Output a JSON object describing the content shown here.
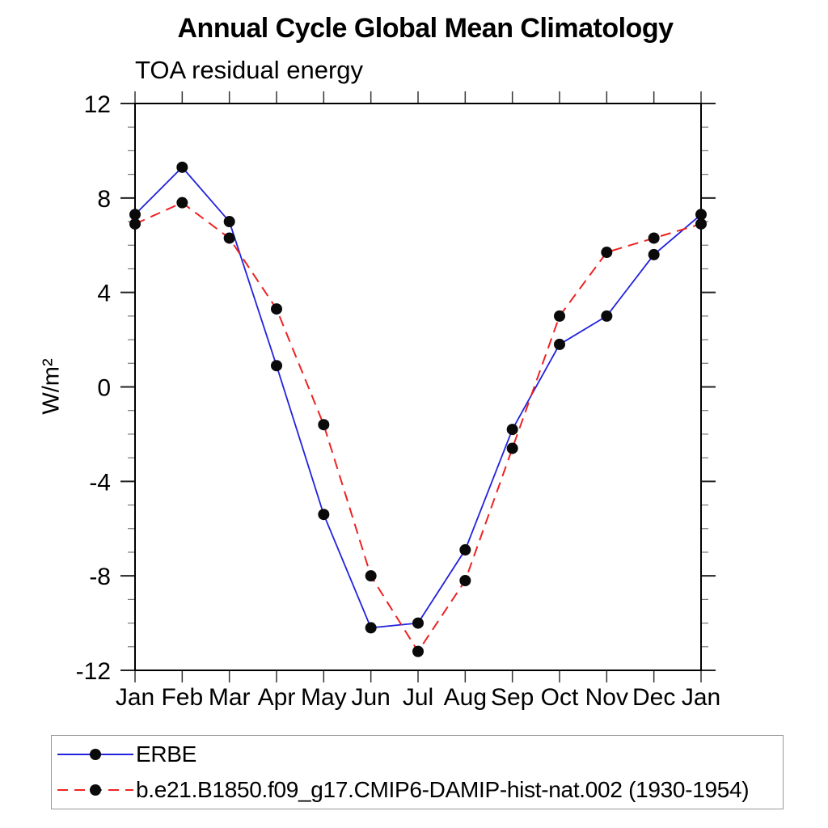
{
  "chart_data": {
    "type": "line",
    "title": "Annual Cycle Global Mean Climatology",
    "subtitle": "TOA residual energy",
    "ylabel": "W/m²",
    "ylim": [
      -12,
      12
    ],
    "y_major_ticks": [
      -12,
      -8,
      -4,
      0,
      4,
      8,
      12
    ],
    "y_minor_step": 1,
    "grid": false,
    "legend_position": "bottom-left-box",
    "categories": [
      "Jan",
      "Feb",
      "Mar",
      "Apr",
      "May",
      "Jun",
      "Jul",
      "Aug",
      "Sep",
      "Oct",
      "Nov",
      "Dec",
      "Jan"
    ],
    "series": [
      {
        "name": "ERBE",
        "color": "#2222dd",
        "line_style": "solid",
        "marker": "circle",
        "marker_color": "#0a0a0a",
        "values": [
          7.3,
          9.3,
          7.0,
          0.9,
          -5.4,
          -10.2,
          -10.0,
          -6.9,
          -1.8,
          1.8,
          3.0,
          5.6,
          7.3
        ]
      },
      {
        "name": "b.e21.B1850.f09_g17.CMIP6-DAMIP-hist-nat.002 (1930-1954)",
        "color": "#ee2222",
        "line_style": "dashed",
        "marker": "circle",
        "marker_color": "#0a0a0a",
        "values": [
          6.9,
          7.8,
          6.3,
          3.3,
          -1.6,
          -8.0,
          -11.2,
          -8.2,
          -2.6,
          3.0,
          5.7,
          6.3,
          6.9
        ]
      }
    ]
  }
}
